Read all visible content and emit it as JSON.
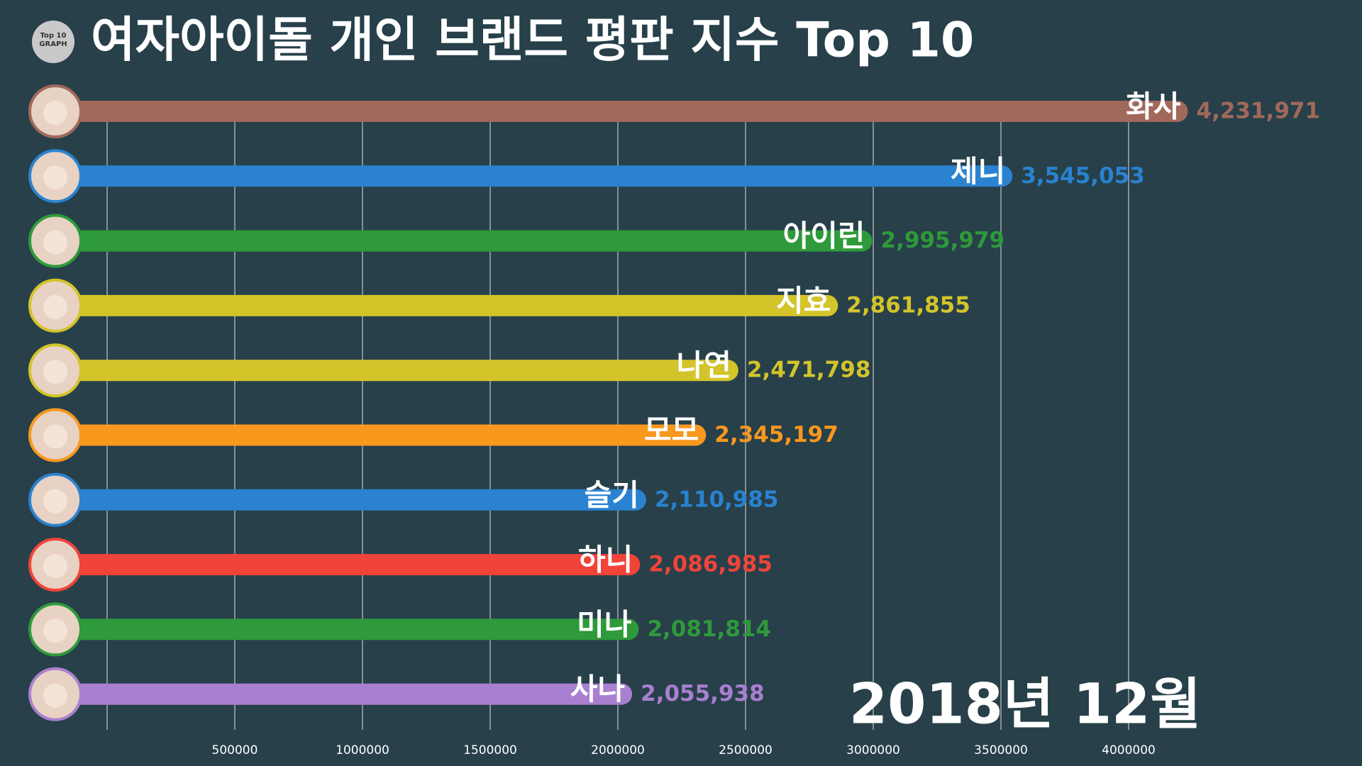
{
  "logo": [
    "Top 10",
    "GRAPH"
  ],
  "chart_data": {
    "type": "bar",
    "orientation": "horizontal",
    "title": "여자아이돌 개인 브랜드 평판 지수 Top 10",
    "annotation": "2018년 12월",
    "categories": [
      "화사",
      "제니",
      "아이린",
      "지효",
      "나연",
      "모모",
      "슬기",
      "하니",
      "미나",
      "사나"
    ],
    "values": [
      4231971,
      3545053,
      2995979,
      2861855,
      2471798,
      2345197,
      2110985,
      2086985,
      2081814,
      2055938
    ],
    "value_labels": [
      "4,231,971",
      "3,545,053",
      "2,995,979",
      "2,861,855",
      "2,471,798",
      "2,345,197",
      "2,110,985",
      "2,086,985",
      "2,081,814",
      "2,055,938"
    ],
    "colors": [
      "#a1695b",
      "#2a82d0",
      "#2e9a3a",
      "#d3c42a",
      "#d3c42a",
      "#f8981d",
      "#2a82d0",
      "#f0443a",
      "#2e9a3a",
      "#a97fd0"
    ],
    "xlim": [
      0,
      4800000
    ],
    "xticks": [
      500000,
      1000000,
      1500000,
      2000000,
      2500000,
      3000000,
      3500000,
      4000000
    ],
    "grid": true
  }
}
